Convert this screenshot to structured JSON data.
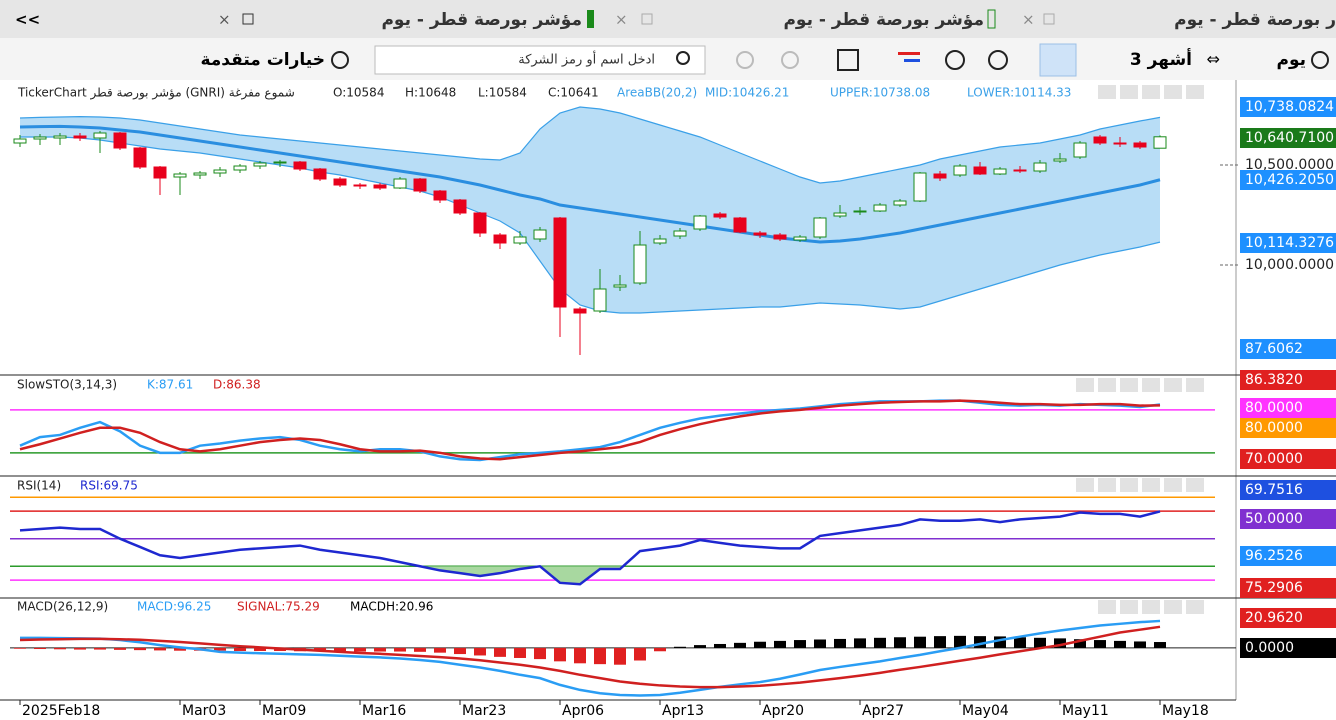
{
  "tabs": [
    "ر بورصة قطر - يوم",
    "مؤشر بورصة قطر - يوم",
    "مؤشر بورصة قطر - يوم"
  ],
  "collapse": "<<",
  "toolbar": {
    "period": "يوم",
    "range": "3 أشهر",
    "search_placeholder": "ادخل اسم أو رمز الشركة",
    "advanced": "خيارات متقدمة"
  },
  "price_labels": [
    {
      "text": "10,738.0824",
      "color": "#1e90ff"
    },
    {
      "text": "10,640.7100",
      "color": "#1a7a1a"
    },
    {
      "text": "10,500.0000",
      "color": "#ffffff"
    },
    {
      "text": "10,426.2050",
      "color": "#1e90ff"
    },
    {
      "text": "10,114.3276",
      "color": "#1e90ff"
    },
    {
      "text": "10,000.0000",
      "color": "#ffffff"
    },
    {
      "text": "87.6062",
      "color": "#1e90ff"
    },
    {
      "text": "86.3820",
      "color": "#e02020"
    },
    {
      "text": "80.0000",
      "color": "#ff33ff"
    },
    {
      "text": "80.0000",
      "color": "#ff9900"
    },
    {
      "text": "70.0000",
      "color": "#e02020"
    },
    {
      "text": "69.7516",
      "color": "#1e50e0"
    },
    {
      "text": "50.0000",
      "color": "#8030d0"
    },
    {
      "text": "96.2526",
      "color": "#1e90ff"
    },
    {
      "text": "75.2906",
      "color": "#e02020"
    },
    {
      "text": "20.9620",
      "color": "#e02020"
    },
    {
      "text": "0.0000",
      "color": "#000000"
    }
  ],
  "chart_data": [
    {
      "type": "candlestick",
      "header": [
        "TickerChart مؤشر بورصة قطر (GNRI) شموع مفرغة",
        "O:10584",
        "H:10648",
        "L:10584",
        "C:10641",
        "AreaBB(20,2)",
        "MID:10426.21",
        "UPPER:10738.08",
        "LOWER:10114.33"
      ],
      "categories": [
        "2025Feb18",
        null,
        null,
        null,
        null,
        null,
        null,
        null,
        "Mar03",
        null,
        null,
        null,
        "Mar09",
        null,
        null,
        null,
        null,
        "Mar16",
        null,
        null,
        null,
        null,
        "Mar23",
        null,
        null,
        null,
        null,
        "Apr06",
        null,
        null,
        null,
        null,
        "Apr13",
        null,
        null,
        null,
        null,
        "Apr20",
        null,
        null,
        null,
        null,
        "Apr27",
        null,
        null,
        null,
        null,
        "May04",
        null,
        null,
        null,
        null,
        "May11",
        null,
        null,
        null,
        null,
        "May18"
      ],
      "open": [
        10610,
        10630,
        10635,
        10645,
        10635,
        10660,
        10585,
        10490,
        10440,
        10450,
        10460,
        10475,
        10495,
        10510,
        10515,
        10480,
        10430,
        10400,
        10400,
        10385,
        10430,
        10370,
        10325,
        10260,
        10150,
        10110,
        10130,
        10235,
        9780,
        9770,
        9890,
        9910,
        10110,
        10145,
        10180,
        10255,
        10235,
        10160,
        10150,
        10125,
        10140,
        10245,
        10265,
        10270,
        10300,
        10320,
        10455,
        10450,
        10490,
        10455,
        10475,
        10470,
        10520,
        10540,
        10640,
        10610,
        10610,
        10584
      ],
      "high": [
        10650,
        10655,
        10660,
        10660,
        10670,
        10665,
        10590,
        10495,
        10465,
        10470,
        10490,
        10505,
        10520,
        10525,
        10520,
        10485,
        10440,
        10410,
        10410,
        10440,
        10435,
        10375,
        10330,
        10265,
        10160,
        10170,
        10190,
        10240,
        9790,
        9980,
        9950,
        10170,
        10150,
        10185,
        10250,
        10265,
        10240,
        10170,
        10160,
        10150,
        10240,
        10300,
        10290,
        10310,
        10330,
        10465,
        10470,
        10505,
        10515,
        10490,
        10495,
        10525,
        10560,
        10620,
        10650,
        10640,
        10620,
        10648
      ],
      "low": [
        10590,
        10600,
        10600,
        10620,
        10560,
        10575,
        10480,
        10350,
        10350,
        10430,
        10440,
        10460,
        10480,
        10490,
        10470,
        10420,
        10390,
        10380,
        10375,
        10380,
        10360,
        10310,
        10250,
        10140,
        10080,
        10100,
        10115,
        9640,
        9550,
        9760,
        9870,
        9900,
        10100,
        10130,
        10170,
        10230,
        10160,
        10135,
        10120,
        10115,
        10130,
        10235,
        10250,
        10265,
        10290,
        10315,
        10420,
        10440,
        10450,
        10450,
        10460,
        10460,
        10510,
        10530,
        10600,
        10590,
        10580,
        10584
      ],
      "close": [
        10630,
        10640,
        10645,
        10635,
        10660,
        10585,
        10490,
        10435,
        10455,
        10460,
        10475,
        10495,
        10510,
        10515,
        10480,
        10430,
        10400,
        10395,
        10385,
        10430,
        10370,
        10325,
        10260,
        10160,
        10110,
        10140,
        10175,
        9790,
        9760,
        9880,
        9900,
        10100,
        10130,
        10170,
        10245,
        10240,
        10165,
        10150,
        10130,
        10140,
        10235,
        10260,
        10270,
        10300,
        10320,
        10460,
        10435,
        10495,
        10455,
        10480,
        10470,
        10510,
        10530,
        10610,
        10610,
        10605,
        10590,
        10641
      ],
      "up_color": "#1a8a1a",
      "down_color": "#e8001c",
      "series": [
        {
          "name": "UPPER",
          "color": "#3aa0e8",
          "values": [
            10735,
            10738,
            10740,
            10742,
            10740,
            10735,
            10725,
            10710,
            10695,
            10680,
            10665,
            10650,
            10640,
            10630,
            10620,
            10610,
            10600,
            10590,
            10580,
            10570,
            10560,
            10550,
            10540,
            10530,
            10525,
            10560,
            10680,
            10760,
            10790,
            10780,
            10760,
            10730,
            10700,
            10670,
            10640,
            10600,
            10560,
            10520,
            10480,
            10440,
            10410,
            10420,
            10440,
            10460,
            10480,
            10500,
            10530,
            10550,
            10570,
            10590,
            10600,
            10610,
            10630,
            10650,
            10680,
            10700,
            10720,
            10738.08
          ]
        },
        {
          "name": "MID",
          "color": "#2a8ee0",
          "values": [
            10690,
            10692,
            10693,
            10690,
            10685,
            10675,
            10665,
            10650,
            10635,
            10620,
            10605,
            10590,
            10575,
            10560,
            10545,
            10530,
            10515,
            10500,
            10485,
            10470,
            10455,
            10440,
            10420,
            10400,
            10375,
            10350,
            10330,
            10300,
            10285,
            10270,
            10255,
            10240,
            10225,
            10210,
            10195,
            10180,
            10165,
            10150,
            10135,
            10125,
            10115,
            10120,
            10130,
            10145,
            10160,
            10180,
            10200,
            10220,
            10240,
            10260,
            10280,
            10300,
            10320,
            10340,
            10360,
            10380,
            10400,
            10426.21
          ]
        },
        {
          "name": "LOWER",
          "color": "#3aa0e8",
          "values": [
            10640,
            10640,
            10640,
            10635,
            10625,
            10610,
            10595,
            10580,
            10570,
            10560,
            10545,
            10530,
            10515,
            10500,
            10485,
            10465,
            10450,
            10430,
            10410,
            10390,
            10370,
            10340,
            10300,
            10260,
            10220,
            10160,
            10020,
            9880,
            9800,
            9770,
            9760,
            9760,
            9765,
            9770,
            9775,
            9780,
            9785,
            9790,
            9790,
            9800,
            9810,
            9805,
            9800,
            9790,
            9780,
            9790,
            9820,
            9850,
            9880,
            9910,
            9940,
            9970,
            10000,
            10025,
            10050,
            10070,
            10090,
            10114.33
          ]
        }
      ],
      "band_color": "#b8ddf6",
      "ylim": [
        9465,
        10910
      ],
      "yticks": [
        {
          "value": 10000,
          "label": "10,000.0000"
        },
        {
          "value": 10500,
          "label": "10,500.0000"
        }
      ]
    },
    {
      "type": "line",
      "header": [
        "SlowSTO(3,14,3)",
        "K:87.61",
        "D:86.38"
      ],
      "series": [
        {
          "name": "K",
          "color": "#2a9df4",
          "values": [
            30,
            42,
            45,
            55,
            63,
            50,
            30,
            20,
            20,
            30,
            33,
            37,
            40,
            42,
            38,
            30,
            25,
            22,
            25,
            25,
            22,
            15,
            11,
            10,
            14,
            18,
            20,
            22,
            25,
            28,
            35,
            45,
            55,
            62,
            68,
            72,
            75,
            78,
            80,
            82,
            85,
            88,
            90,
            92,
            92,
            92,
            93,
            93,
            90,
            87,
            86,
            87,
            86,
            88,
            87,
            86,
            84,
            87.61
          ]
        },
        {
          "name": "D",
          "color": "#d02020",
          "values": [
            25,
            32,
            40,
            48,
            55,
            55,
            48,
            35,
            25,
            22,
            25,
            30,
            35,
            38,
            40,
            38,
            32,
            25,
            22,
            22,
            23,
            20,
            15,
            12,
            11,
            14,
            17,
            20,
            22,
            25,
            28,
            35,
            45,
            53,
            60,
            66,
            71,
            75,
            78,
            80,
            83,
            86,
            88,
            90,
            91,
            92,
            92,
            93,
            92,
            90,
            88,
            88,
            87,
            87,
            88,
            88,
            86,
            86.38
          ]
        }
      ],
      "levels": [
        {
          "value": 80,
          "color": "#ff33ff"
        },
        {
          "value": 20,
          "color": "#2a9a2a"
        }
      ],
      "ylim": [
        -11,
        126
      ]
    },
    {
      "type": "line",
      "header": [
        "RSI(14)",
        "RSI:69.75"
      ],
      "series": [
        {
          "name": "RSI",
          "color": "#1e28d0",
          "values": [
            56,
            57,
            58,
            57,
            57,
            50,
            44,
            38,
            36,
            38,
            40,
            42,
            43,
            44,
            45,
            42,
            40,
            38,
            36,
            33,
            30,
            27,
            25,
            23,
            25,
            28,
            30,
            18,
            17,
            28,
            28,
            41,
            43,
            45,
            49,
            47,
            45,
            44,
            43,
            43,
            52,
            54,
            56,
            58,
            60,
            64,
            63,
            63,
            64,
            62,
            64,
            65,
            66,
            69,
            68,
            68,
            66,
            69.75
          ]
        }
      ],
      "levels": [
        {
          "value": 80,
          "color": "#ff9900"
        },
        {
          "value": 70,
          "color": "#e02020"
        },
        {
          "value": 50,
          "color": "#8030d0"
        },
        {
          "value": 30,
          "color": "#2a9a2a"
        },
        {
          "value": 20,
          "color": "#ff33ff"
        }
      ],
      "oversold_fill": "#a8d8a0",
      "ylim": [
        7,
        94
      ]
    },
    {
      "type": "macd",
      "header": [
        "MACD(26,12,9)",
        "MACD:96.25",
        "SIGNAL:75.29",
        "MACDH:20.96"
      ],
      "series": [
        {
          "name": "MACD",
          "color": "#2a9df4",
          "values": [
            36,
            36,
            35,
            34,
            33,
            28,
            20,
            10,
            2,
            -5,
            -14,
            -17,
            -19,
            -21,
            -23,
            -25,
            -28,
            -31,
            -34,
            -38,
            -43,
            -50,
            -60,
            -70,
            -82,
            -96,
            -108,
            -132,
            -150,
            -162,
            -168,
            -170,
            -168,
            -160,
            -150,
            -139,
            -130,
            -122,
            -110,
            -95,
            -79,
            -68,
            -58,
            -48,
            -36,
            -25,
            -12,
            0,
            14,
            28,
            40,
            52,
            62,
            71,
            80,
            86,
            92,
            96.25
          ]
        },
        {
          "name": "SIGNAL",
          "color": "#d02020",
          "values": [
            28,
            30,
            31,
            32,
            32,
            31,
            29,
            25,
            21,
            16,
            11,
            6,
            2,
            -2,
            -6,
            -10,
            -14,
            -18,
            -21,
            -25,
            -29,
            -33,
            -38,
            -44,
            -52,
            -60,
            -70,
            -82,
            -96,
            -108,
            -120,
            -128,
            -134,
            -138,
            -140,
            -140,
            -138,
            -135,
            -130,
            -124,
            -116,
            -108,
            -99,
            -89,
            -78,
            -68,
            -57,
            -46,
            -35,
            -23,
            -12,
            -1,
            10,
            25,
            40,
            55,
            65,
            75.29
          ]
        },
        {
          "name": "MACDH",
          "color": "#000000",
          "negative_color": "#e02020",
          "values": [
            -3,
            -4,
            -5,
            -6,
            -6,
            -7,
            -8,
            -9,
            -10,
            -10,
            -10,
            -11,
            -11,
            -11,
            -12,
            -12,
            -12,
            -13,
            -13,
            -13,
            -14,
            -17,
            -22,
            -27,
            -32,
            -36,
            -40,
            -48,
            -55,
            -58,
            -60,
            -45,
            -12,
            4,
            10,
            14,
            18,
            22,
            25,
            28,
            30,
            32,
            34,
            36,
            38,
            40,
            42,
            43,
            42,
            41,
            38,
            36,
            34,
            31,
            28,
            25,
            23,
            20.96
          ]
        }
      ],
      "ylim": [
        -186,
        171
      ]
    }
  ]
}
